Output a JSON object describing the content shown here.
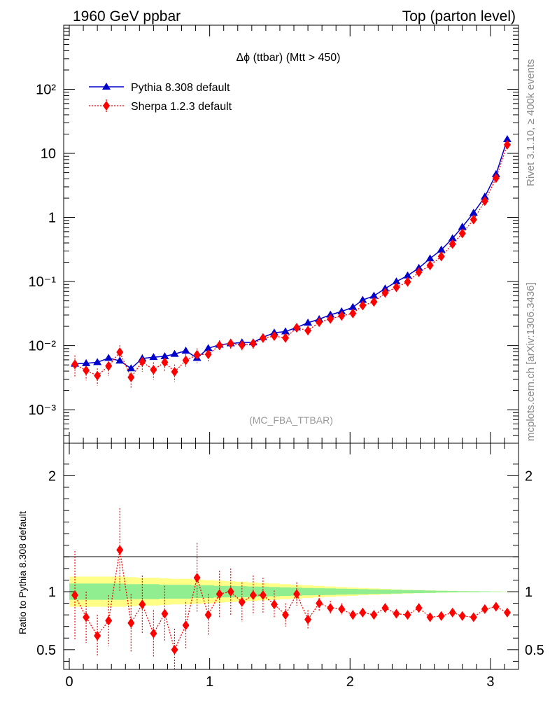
{
  "header": {
    "left": "1960 GeV ppbar",
    "right": "Top (parton level)"
  },
  "side": {
    "rivet": "Rivet 3.1.10, ≥ 400k events",
    "mcplots": "mcplots.cern.ch [arXiv:1306.3436]"
  },
  "chart_data": {
    "type": "line",
    "title": "Δϕ (ttbar) (Mtt > 450)",
    "analysis_label": "(MC_FBA_TTBAR)",
    "x_range": [
      -0.04,
      3.2
    ],
    "x_ticks": [
      "0",
      "1",
      "2",
      "3"
    ],
    "x_tick_values": [
      0,
      1,
      2,
      3
    ],
    "top_panel": {
      "y_scale": "log",
      "y_range": [
        0.0003,
        1000
      ],
      "y_tick_labels": [
        "10⁻³",
        "10⁻²",
        "10⁻¹",
        "1",
        "10",
        "10²"
      ],
      "y_tick_values": [
        0.001,
        0.01,
        0.1,
        1,
        10,
        100
      ],
      "series": [
        {
          "name": "Pythia 8.308 default",
          "color": "#0000cc",
          "marker": "triangle",
          "line": "solid",
          "x": [
            0.04,
            0.12,
            0.2,
            0.28,
            0.36,
            0.44,
            0.52,
            0.6,
            0.68,
            0.75,
            0.83,
            0.91,
            0.99,
            1.07,
            1.15,
            1.23,
            1.31,
            1.38,
            1.46,
            1.54,
            1.62,
            1.7,
            1.78,
            1.86,
            1.94,
            2.02,
            2.09,
            2.17,
            2.25,
            2.33,
            2.41,
            2.49,
            2.57,
            2.65,
            2.73,
            2.8,
            2.88,
            2.96,
            3.04,
            3.12
          ],
          "y": [
            0.0052,
            0.0053,
            0.0055,
            0.0064,
            0.0058,
            0.0044,
            0.0063,
            0.0066,
            0.0068,
            0.0074,
            0.0083,
            0.0064,
            0.0091,
            0.0103,
            0.0108,
            0.0112,
            0.0112,
            0.0135,
            0.0159,
            0.0166,
            0.0192,
            0.0227,
            0.0258,
            0.0303,
            0.0341,
            0.0398,
            0.0514,
            0.0598,
            0.0774,
            0.0998,
            0.1238,
            0.1626,
            0.2287,
            0.3127,
            0.4716,
            0.7133,
            1.1766,
            2.1015,
            4.7214,
            16.58
          ]
        },
        {
          "name": "Sherpa 1.2.3 default",
          "color": "#ff0000",
          "marker": "diamond",
          "line": "dotted",
          "x": [
            0.04,
            0.12,
            0.2,
            0.28,
            0.36,
            0.44,
            0.52,
            0.6,
            0.68,
            0.75,
            0.83,
            0.91,
            0.99,
            1.07,
            1.15,
            1.23,
            1.31,
            1.38,
            1.46,
            1.54,
            1.62,
            1.7,
            1.78,
            1.86,
            1.94,
            2.02,
            2.09,
            2.17,
            2.25,
            2.33,
            2.41,
            2.49,
            2.57,
            2.65,
            2.73,
            2.8,
            2.88,
            2.96,
            3.04,
            3.12
          ],
          "y": [
            0.0051,
            0.0041,
            0.0034,
            0.0048,
            0.0079,
            0.0032,
            0.0056,
            0.0042,
            0.0055,
            0.0039,
            0.0059,
            0.0072,
            0.0073,
            0.0101,
            0.0108,
            0.0102,
            0.0108,
            0.0131,
            0.0141,
            0.0132,
            0.019,
            0.0172,
            0.0232,
            0.0261,
            0.0291,
            0.0318,
            0.0422,
            0.0481,
            0.0665,
            0.0812,
            0.0987,
            0.1398,
            0.1787,
            0.2462,
            0.3855,
            0.5636,
            0.9255,
            1.7981,
            4.1073,
            13.64
          ],
          "y_err_rel": [
            0.38,
            0.3,
            0.3,
            0.3,
            0.28,
            0.33,
            0.3,
            0.3,
            0.28,
            0.3,
            0.25,
            0.26,
            0.22,
            0.2,
            0.18,
            0.18,
            0.17,
            0.15,
            0.13,
            0.12,
            0.1,
            0.1,
            0.08,
            0.07,
            0.06,
            0.05,
            0.05,
            0.04,
            0.04,
            0.03,
            0.03,
            0.03,
            0.03,
            0.02,
            0.02,
            0.02,
            0.02,
            0.01,
            0.01,
            0.01
          ]
        }
      ]
    },
    "ratio_panel": {
      "ylabel": "Ratio to Pythia 8.308 default",
      "y_range": [
        0.33,
        2.28
      ],
      "y_tick_labels": [
        "0.5",
        "1",
        "2"
      ],
      "y_tick_values": [
        0.5,
        1,
        2
      ],
      "reference_line": 1,
      "band_inner_rel": [
        0.07,
        0.07,
        0.07,
        0.07,
        0.07,
        0.065,
        0.065,
        0.065,
        0.06,
        0.06,
        0.06,
        0.055,
        0.055,
        0.05,
        0.05,
        0.048,
        0.045,
        0.043,
        0.04,
        0.037,
        0.035,
        0.032,
        0.03,
        0.028,
        0.026,
        0.024,
        0.022,
        0.02,
        0.018,
        0.016,
        0.014,
        0.012,
        0.01,
        0.008,
        0.006,
        0.005,
        0.004,
        0.003,
        0.002,
        0.001
      ],
      "band_outer_rel": [
        0.13,
        0.13,
        0.13,
        0.13,
        0.13,
        0.125,
        0.12,
        0.12,
        0.115,
        0.11,
        0.11,
        0.105,
        0.1,
        0.095,
        0.09,
        0.085,
        0.08,
        0.075,
        0.07,
        0.065,
        0.06,
        0.055,
        0.05,
        0.045,
        0.04,
        0.036,
        0.032,
        0.028,
        0.024,
        0.02,
        0.017,
        0.014,
        0.011,
        0.009,
        0.007,
        0.005,
        0.004,
        0.003,
        0.002,
        0.001
      ],
      "band_inner_color": "#90ee90",
      "band_outer_color": "#ffff88",
      "sherpa_ratio": [
        0.97,
        0.78,
        0.62,
        0.75,
        1.36,
        0.73,
        0.89,
        0.64,
        0.81,
        0.5,
        0.71,
        1.12,
        0.8,
        0.98,
        1.0,
        0.91,
        0.97,
        0.97,
        0.89,
        0.8,
        0.98,
        0.76,
        0.9,
        0.86,
        0.85,
        0.8,
        0.82,
        0.8,
        0.86,
        0.81,
        0.8,
        0.86,
        0.78,
        0.79,
        0.82,
        0.79,
        0.78,
        0.85,
        0.87,
        0.82
      ],
      "sherpa_ratio_err": [
        0.38,
        0.22,
        0.18,
        0.22,
        0.36,
        0.25,
        0.25,
        0.2,
        0.24,
        0.18,
        0.2,
        0.3,
        0.18,
        0.2,
        0.2,
        0.17,
        0.17,
        0.15,
        0.12,
        0.1,
        0.1,
        0.08,
        0.07,
        0.06,
        0.05,
        0.04,
        0.04,
        0.035,
        0.035,
        0.03,
        0.03,
        0.03,
        0.02,
        0.02,
        0.02,
        0.02,
        0.015,
        0.015,
        0.015,
        0.015
      ]
    }
  }
}
